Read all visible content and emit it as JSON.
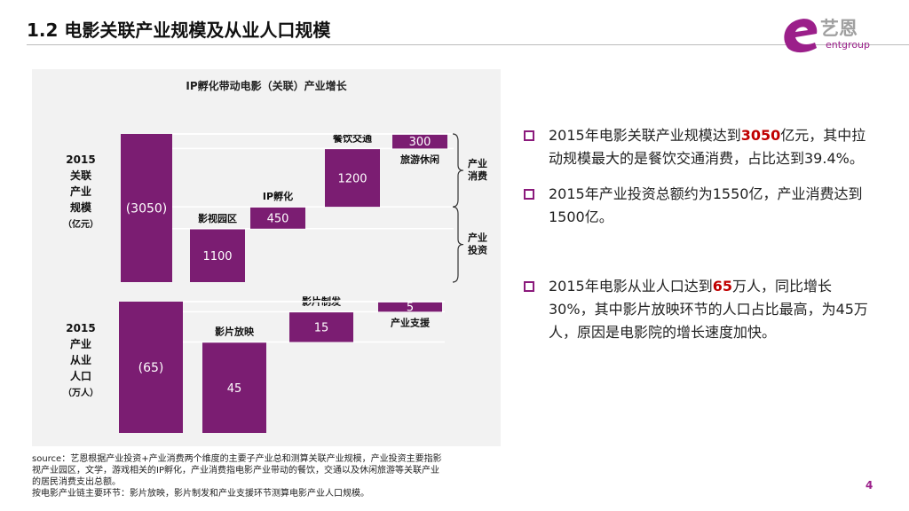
{
  "title": "1.2 电影关联产业规模及从业人口规模",
  "logo": {
    "cn": "艺恩",
    "en": "entgroup"
  },
  "page_number": "4",
  "colors": {
    "accent": "#7b1d72",
    "bullet": "#8b1a7c",
    "highlight": "#c00000",
    "panel": "#f2f2f2"
  },
  "chart_data": [
    {
      "type": "waterfall",
      "title": "IP孵化带动电影（关联）产业增长",
      "row_label": [
        "2015",
        "关联",
        "产业",
        "规模",
        "（亿元）"
      ],
      "total_label": "(3050)",
      "total": 3050,
      "items": [
        {
          "name": "影视园区",
          "value": 1100,
          "label": "1100"
        },
        {
          "name": "IP孵化",
          "value": 450,
          "label": "450"
        },
        {
          "name": "餐饮交通",
          "value": 1200,
          "label": "1200"
        },
        {
          "name": "旅游休闲",
          "value": 300,
          "label": "300"
        }
      ],
      "groups": [
        {
          "name": "产业消费",
          "lines": [
            "产业",
            "消费"
          ]
        },
        {
          "name": "产业投资",
          "lines": [
            "产业",
            "投资"
          ]
        }
      ]
    },
    {
      "type": "waterfall",
      "title": "",
      "row_label": [
        "2015",
        "产业",
        "从业",
        "人口",
        "（万人）"
      ],
      "total_label": "(65)",
      "total": 65,
      "items": [
        {
          "name": "影片放映",
          "value": 45,
          "label": "45"
        },
        {
          "name": "影片制发",
          "value": 15,
          "label": "15"
        },
        {
          "name": "产业支援",
          "value": 5,
          "label": "5"
        }
      ]
    }
  ],
  "source_lines": [
    "source：艺恩根据产业投资+产业消费两个维度的主要子产业总和测算关联产业规模，产业投资主要指影",
    "视产业园区，文学，游戏相关的IP孵化，产业消费指电影产业带动的餐饮，交通以及休闲旅游等关联产业",
    "的居民消费支出总额。",
    "按电影产业链主要环节：影片放映，影片制发和产业支援环节测算电影产业人口规模。"
  ],
  "bullets": [
    {
      "pre": "2015年电影关联产业规模达到",
      "hl": "3050",
      "post": "亿元，其中拉动规模最大的是餐饮交通消费，占比达到39.4%。"
    },
    {
      "pre": "2015年产业投资总额约为1550亿，产业消费达到1500亿。",
      "hl": "",
      "post": ""
    },
    {
      "pre": "2015年电影从业人口达到",
      "hl": "65",
      "post": "万人，同比增长30%，其中影片放映环节的人口占比最高，为45万人，原因是电影院的增长速度加快。"
    }
  ]
}
